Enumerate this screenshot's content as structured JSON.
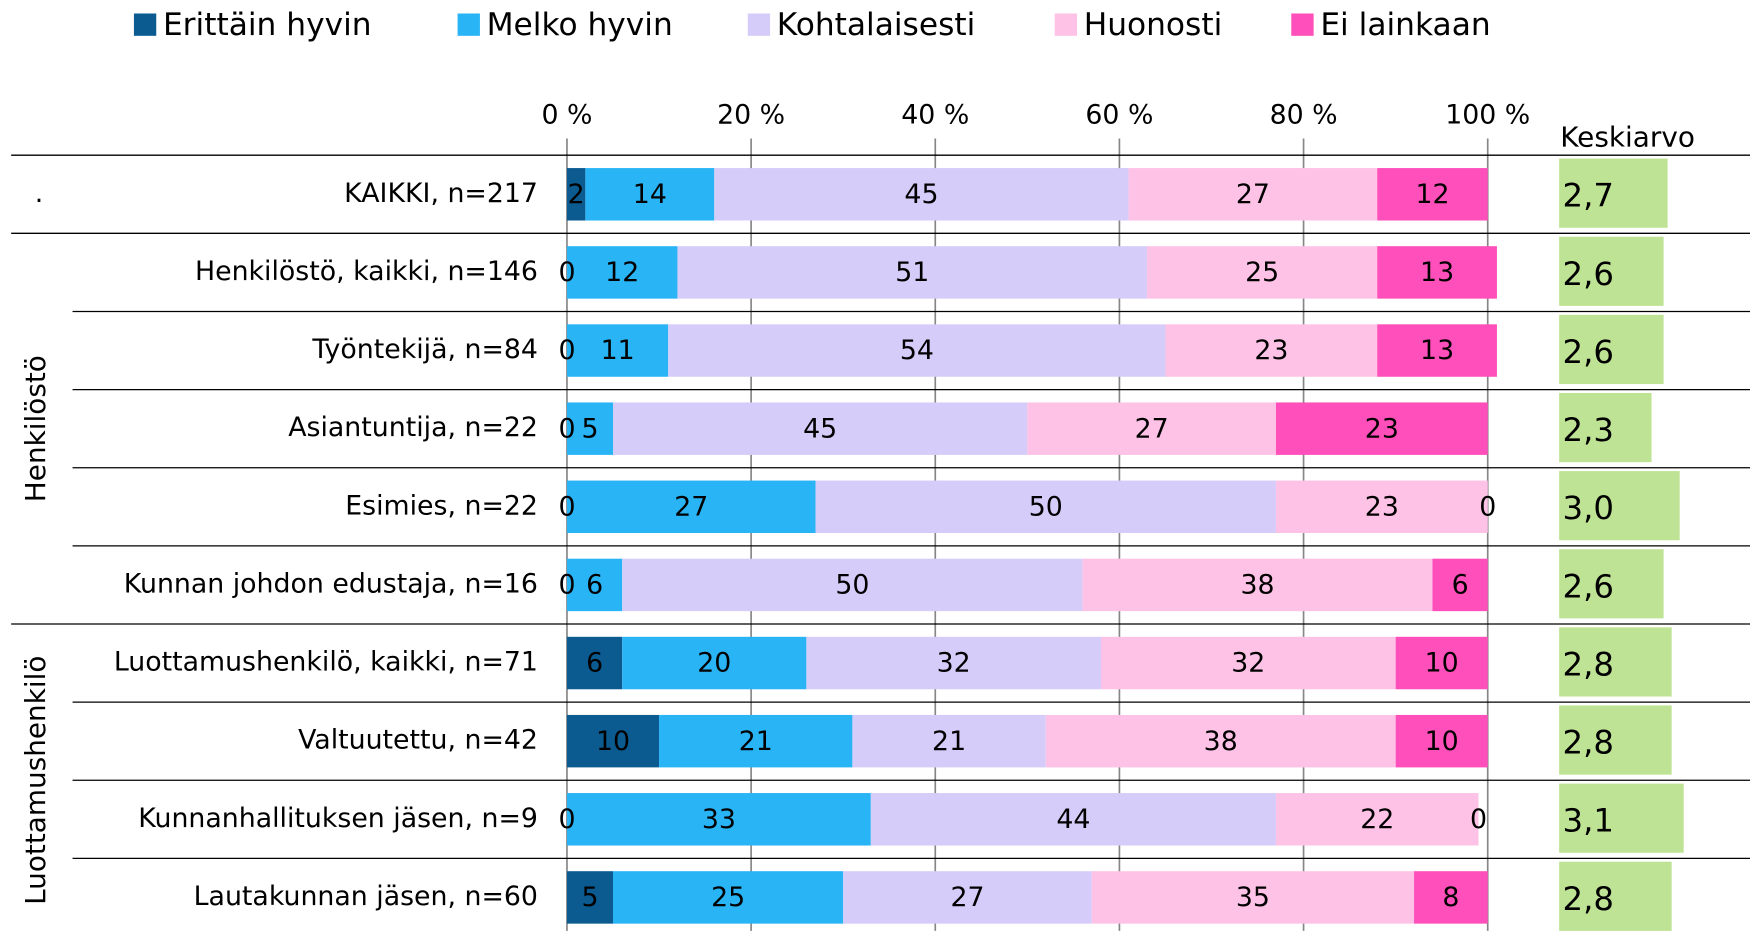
{
  "chart_data": {
    "type": "stacked_barh",
    "categories": [
      "KAIKKI, n=217",
      "Henkilöstö, kaikki, n=146",
      "Työntekijä, n=84",
      "Asiantuntija, n=22",
      "Esimies, n=22",
      "Kunnan johdon edustaja, n=16",
      "Luottamushenkilö, kaikki, n=71",
      "Valtuutettu, n=42",
      "Kunnanhallituksen jäsen, n=9",
      "Lautakunnan jäsen, n=60"
    ],
    "row_groups": [
      ".",
      "Henkilöstö",
      "Henkilöstö",
      "Henkilöstö",
      "Henkilöstö",
      "Henkilöstö",
      "Luottamushenkilö",
      "Luottamushenkilö",
      "Luottamushenkilö",
      "Luottamushenkilö"
    ],
    "series": [
      {
        "name": "Erittäin hyvin",
        "color": "#0b5b91",
        "values": [
          2,
          0,
          0,
          0,
          0,
          0,
          6,
          10,
          0,
          5
        ]
      },
      {
        "name": "Melko hyvin",
        "color": "#29b4f6",
        "values": [
          14,
          12,
          11,
          5,
          27,
          6,
          20,
          21,
          33,
          25
        ]
      },
      {
        "name": "Kohtalaisesti",
        "color": "#d6ccf9",
        "values": [
          45,
          51,
          54,
          45,
          50,
          50,
          32,
          21,
          44,
          27
        ]
      },
      {
        "name": "Huonosti",
        "color": "#fdc2e6",
        "values": [
          27,
          25,
          23,
          27,
          23,
          38,
          32,
          38,
          22,
          35
        ]
      },
      {
        "name": "Ei lainkaan",
        "color": "#ff4fba",
        "values": [
          12,
          13,
          13,
          23,
          0,
          6,
          10,
          10,
          0,
          8
        ]
      }
    ],
    "xlim": [
      0,
      100
    ],
    "xticks": [
      {
        "value": 0,
        "label": "0 %"
      },
      {
        "value": 20,
        "label": "20 %"
      },
      {
        "value": 40,
        "label": "40 %"
      },
      {
        "value": 60,
        "label": "60 %"
      },
      {
        "value": 80,
        "label": "80 %"
      },
      {
        "value": 100,
        "label": "100 %"
      }
    ],
    "grid": true,
    "legend": "top",
    "mean": {
      "title": "Keskiarvo",
      "color": "#bfe394",
      "xlim": [
        0,
        5
      ],
      "values": [
        2.7,
        2.6,
        2.6,
        2.3,
        3.0,
        2.6,
        2.8,
        2.8,
        3.1,
        2.8
      ],
      "value_labels": [
        "2,7",
        "2,6",
        "2,6",
        "2,3",
        "3,0",
        "2,6",
        "2,8",
        "2,8",
        "3,1",
        "2,8"
      ]
    }
  }
}
